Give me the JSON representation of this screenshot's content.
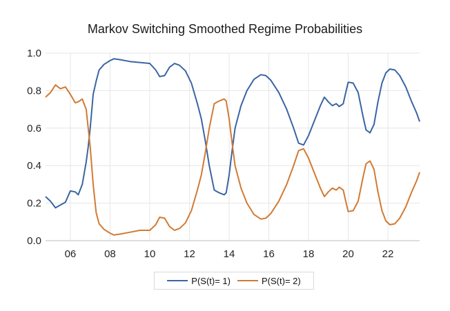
{
  "chart_data": {
    "type": "line",
    "title": "Markov Switching Smoothed Regime Probabilities",
    "xlabel": "",
    "ylabel": "",
    "xlim": [
      2004.75,
      2023.6
    ],
    "ylim": [
      0,
      1
    ],
    "x_ticks": [
      2006,
      2008,
      2010,
      2012,
      2014,
      2016,
      2018,
      2020,
      2022
    ],
    "x_tick_labels": [
      "06",
      "08",
      "10",
      "12",
      "14",
      "16",
      "18",
      "20",
      "22"
    ],
    "y_ticks": [
      0,
      0.2,
      0.4,
      0.6,
      0.8,
      1.0
    ],
    "y_tick_labels": [
      "0.0",
      "0.2",
      "0.4",
      "0.6",
      "0.8",
      "1.0"
    ],
    "grid": true,
    "legend_position": "bottom-center",
    "series": [
      {
        "name": "P(S(t)= 1)",
        "color": "#3a64a3",
        "points": [
          [
            2004.75,
            0.235
          ],
          [
            2005.0,
            0.21
          ],
          [
            2005.25,
            0.175
          ],
          [
            2005.5,
            0.19
          ],
          [
            2005.75,
            0.205
          ],
          [
            2006.0,
            0.265
          ],
          [
            2006.25,
            0.26
          ],
          [
            2006.4,
            0.245
          ],
          [
            2006.6,
            0.3
          ],
          [
            2006.8,
            0.42
          ],
          [
            2006.9,
            0.5
          ],
          [
            2007.0,
            0.6
          ],
          [
            2007.15,
            0.78
          ],
          [
            2007.3,
            0.85
          ],
          [
            2007.45,
            0.91
          ],
          [
            2007.7,
            0.94
          ],
          [
            2008.0,
            0.96
          ],
          [
            2008.2,
            0.97
          ],
          [
            2008.5,
            0.965
          ],
          [
            2009.0,
            0.955
          ],
          [
            2009.5,
            0.95
          ],
          [
            2010.0,
            0.945
          ],
          [
            2010.3,
            0.91
          ],
          [
            2010.5,
            0.875
          ],
          [
            2010.75,
            0.88
          ],
          [
            2011.0,
            0.925
          ],
          [
            2011.25,
            0.945
          ],
          [
            2011.5,
            0.935
          ],
          [
            2011.8,
            0.905
          ],
          [
            2012.1,
            0.84
          ],
          [
            2012.4,
            0.73
          ],
          [
            2012.6,
            0.65
          ],
          [
            2012.8,
            0.53
          ],
          [
            2013.0,
            0.4
          ],
          [
            2013.25,
            0.27
          ],
          [
            2013.5,
            0.255
          ],
          [
            2013.75,
            0.245
          ],
          [
            2013.85,
            0.255
          ],
          [
            2014.0,
            0.35
          ],
          [
            2014.15,
            0.48
          ],
          [
            2014.3,
            0.6
          ],
          [
            2014.6,
            0.72
          ],
          [
            2014.9,
            0.8
          ],
          [
            2015.25,
            0.86
          ],
          [
            2015.6,
            0.885
          ],
          [
            2015.85,
            0.88
          ],
          [
            2016.1,
            0.855
          ],
          [
            2016.5,
            0.79
          ],
          [
            2016.9,
            0.7
          ],
          [
            2017.25,
            0.6
          ],
          [
            2017.5,
            0.52
          ],
          [
            2017.75,
            0.51
          ],
          [
            2018.0,
            0.56
          ],
          [
            2018.3,
            0.64
          ],
          [
            2018.6,
            0.72
          ],
          [
            2018.8,
            0.765
          ],
          [
            2019.0,
            0.74
          ],
          [
            2019.2,
            0.72
          ],
          [
            2019.4,
            0.73
          ],
          [
            2019.55,
            0.715
          ],
          [
            2019.75,
            0.73
          ],
          [
            2019.9,
            0.8
          ],
          [
            2020.0,
            0.845
          ],
          [
            2020.25,
            0.84
          ],
          [
            2020.5,
            0.79
          ],
          [
            2020.75,
            0.66
          ],
          [
            2020.9,
            0.59
          ],
          [
            2021.1,
            0.575
          ],
          [
            2021.3,
            0.62
          ],
          [
            2021.5,
            0.74
          ],
          [
            2021.7,
            0.84
          ],
          [
            2021.9,
            0.895
          ],
          [
            2022.1,
            0.915
          ],
          [
            2022.35,
            0.91
          ],
          [
            2022.6,
            0.88
          ],
          [
            2022.9,
            0.82
          ],
          [
            2023.2,
            0.74
          ],
          [
            2023.45,
            0.68
          ],
          [
            2023.6,
            0.635
          ]
        ]
      },
      {
        "name": "P(S(t)= 2)",
        "color": "#d17a33",
        "points": [
          [
            2004.75,
            0.765
          ],
          [
            2005.0,
            0.79
          ],
          [
            2005.25,
            0.83
          ],
          [
            2005.5,
            0.81
          ],
          [
            2005.75,
            0.82
          ],
          [
            2006.0,
            0.78
          ],
          [
            2006.25,
            0.735
          ],
          [
            2006.4,
            0.74
          ],
          [
            2006.6,
            0.755
          ],
          [
            2006.8,
            0.7
          ],
          [
            2006.9,
            0.6
          ],
          [
            2007.0,
            0.5
          ],
          [
            2007.15,
            0.3
          ],
          [
            2007.3,
            0.15
          ],
          [
            2007.45,
            0.09
          ],
          [
            2007.7,
            0.06
          ],
          [
            2008.0,
            0.04
          ],
          [
            2008.2,
            0.03
          ],
          [
            2008.5,
            0.035
          ],
          [
            2009.0,
            0.045
          ],
          [
            2009.5,
            0.055
          ],
          [
            2010.0,
            0.055
          ],
          [
            2010.3,
            0.085
          ],
          [
            2010.5,
            0.125
          ],
          [
            2010.75,
            0.12
          ],
          [
            2011.0,
            0.075
          ],
          [
            2011.25,
            0.055
          ],
          [
            2011.5,
            0.065
          ],
          [
            2011.8,
            0.095
          ],
          [
            2012.1,
            0.16
          ],
          [
            2012.4,
            0.27
          ],
          [
            2012.6,
            0.35
          ],
          [
            2012.8,
            0.47
          ],
          [
            2013.0,
            0.6
          ],
          [
            2013.25,
            0.73
          ],
          [
            2013.5,
            0.745
          ],
          [
            2013.75,
            0.755
          ],
          [
            2013.85,
            0.745
          ],
          [
            2014.0,
            0.65
          ],
          [
            2014.15,
            0.52
          ],
          [
            2014.3,
            0.4
          ],
          [
            2014.6,
            0.28
          ],
          [
            2014.9,
            0.2
          ],
          [
            2015.25,
            0.14
          ],
          [
            2015.6,
            0.115
          ],
          [
            2015.85,
            0.12
          ],
          [
            2016.1,
            0.145
          ],
          [
            2016.5,
            0.21
          ],
          [
            2016.9,
            0.3
          ],
          [
            2017.25,
            0.4
          ],
          [
            2017.5,
            0.48
          ],
          [
            2017.75,
            0.49
          ],
          [
            2018.0,
            0.44
          ],
          [
            2018.3,
            0.36
          ],
          [
            2018.6,
            0.28
          ],
          [
            2018.8,
            0.235
          ],
          [
            2019.0,
            0.26
          ],
          [
            2019.2,
            0.28
          ],
          [
            2019.4,
            0.27
          ],
          [
            2019.55,
            0.285
          ],
          [
            2019.75,
            0.27
          ],
          [
            2019.9,
            0.2
          ],
          [
            2020.0,
            0.155
          ],
          [
            2020.25,
            0.16
          ],
          [
            2020.5,
            0.21
          ],
          [
            2020.75,
            0.34
          ],
          [
            2020.9,
            0.41
          ],
          [
            2021.1,
            0.425
          ],
          [
            2021.3,
            0.38
          ],
          [
            2021.5,
            0.26
          ],
          [
            2021.7,
            0.16
          ],
          [
            2021.9,
            0.105
          ],
          [
            2022.1,
            0.085
          ],
          [
            2022.35,
            0.09
          ],
          [
            2022.6,
            0.12
          ],
          [
            2022.9,
            0.18
          ],
          [
            2023.2,
            0.26
          ],
          [
            2023.45,
            0.32
          ],
          [
            2023.6,
            0.365
          ]
        ]
      }
    ]
  }
}
